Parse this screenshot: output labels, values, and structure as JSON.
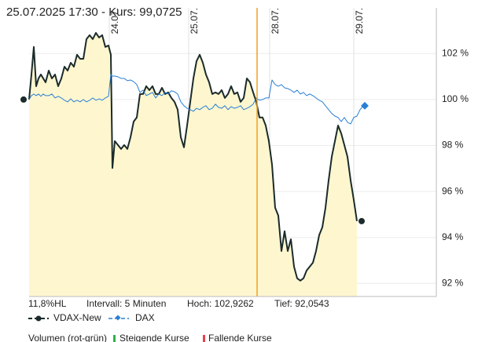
{
  "chart_data": {
    "type": "line",
    "title": "25.07.2025 17:30  -  Kurs: 99,0725",
    "x": [
      0,
      3,
      6,
      9,
      12,
      15,
      18,
      21,
      25,
      29,
      33,
      37,
      41,
      45,
      49,
      53,
      57,
      61,
      65,
      69,
      73,
      77,
      81,
      85,
      89,
      93,
      97,
      101,
      104,
      106,
      109,
      113,
      117,
      121,
      125,
      129,
      133,
      137,
      141,
      145,
      149,
      153,
      157,
      161,
      165,
      169,
      173,
      177,
      181,
      185,
      189,
      193,
      197,
      201,
      205,
      209,
      213,
      217,
      221,
      225,
      229,
      233,
      237,
      241,
      245,
      249,
      253,
      257,
      261,
      265,
      269,
      273,
      277,
      281,
      285,
      289,
      293,
      297,
      301,
      305,
      309,
      313,
      317,
      321,
      325,
      329,
      333,
      337,
      341,
      345,
      349,
      353,
      357,
      361,
      365,
      369,
      373,
      377,
      381,
      385,
      389,
      393,
      397,
      401,
      405,
      409,
      413,
      417,
      421,
      425
    ],
    "xlim": [
      0,
      518
    ],
    "xticks": [
      {
        "value": 102,
        "label": "24.07."
      },
      {
        "value": 203,
        "label": "25.07."
      },
      {
        "value": 306,
        "label": "28.07."
      },
      {
        "value": 413,
        "label": "29.07."
      }
    ],
    "ylim": [
      91.43,
      103.99
    ],
    "yticks": [
      {
        "value": 92,
        "label": "92 %"
      },
      {
        "value": 94,
        "label": "94 %"
      },
      {
        "value": 96,
        "label": "96 %"
      },
      {
        "value": 98,
        "label": "98 %"
      },
      {
        "value": 100,
        "label": "100 %"
      },
      {
        "value": 102,
        "label": "102 %"
      }
    ],
    "grid": true,
    "series": [
      {
        "name": "VDAX-New",
        "color": "#1b2b2b",
        "fill": "#fdf6cf",
        "values": [
          100.0,
          101.09,
          102.29,
          100.58,
          100.92,
          101.09,
          100.92,
          100.75,
          101.26,
          100.92,
          101.09,
          100.58,
          100.92,
          101.43,
          101.26,
          101.6,
          101.43,
          101.95,
          101.77,
          101.77,
          102.63,
          102.8,
          102.63,
          102.9,
          102.7,
          102.8,
          102.29,
          102.35,
          101.95,
          97.02,
          98.19,
          98.02,
          97.85,
          98.02,
          97.85,
          98.36,
          99.04,
          99.22,
          100.24,
          100.24,
          100.58,
          100.41,
          100.58,
          100.24,
          100.24,
          100.51,
          100.24,
          100.31,
          100.07,
          99.9,
          99.56,
          98.36,
          97.92,
          98.87,
          99.9,
          100.92,
          101.67,
          101.95,
          101.6,
          101.09,
          100.75,
          100.24,
          100.31,
          100.24,
          100.41,
          100.07,
          100.24,
          100.58,
          100.24,
          100.31,
          99.9,
          100.07,
          100.92,
          100.75,
          100.31,
          99.9,
          99.22,
          99.22,
          98.87,
          98.19,
          97.17,
          95.29,
          94.95,
          93.41,
          94.27,
          93.41,
          93.92,
          92.73,
          92.22,
          92.12,
          92.22,
          92.56,
          92.73,
          92.9,
          93.41,
          94.1,
          94.44,
          95.29,
          96.48,
          97.51,
          98.19,
          98.87,
          98.53,
          98.02,
          97.51,
          96.48,
          95.63,
          94.71,
          null,
          null
        ]
      },
      {
        "name": "DAX",
        "color": "#2a7fd4",
        "values": [
          100.0,
          100.17,
          100.24,
          100.17,
          100.24,
          100.14,
          100.24,
          100.17,
          100.17,
          100.24,
          100.07,
          100.14,
          100.07,
          99.97,
          99.9,
          100.03,
          99.9,
          99.97,
          99.9,
          100.0,
          99.9,
          99.97,
          100.07,
          99.97,
          100.03,
          99.97,
          100.07,
          100.14,
          101.09,
          101.02,
          101.02,
          100.99,
          100.92,
          100.92,
          100.82,
          100.85,
          100.78,
          100.65,
          100.31,
          100.41,
          100.17,
          100.24,
          100.31,
          100.07,
          100.24,
          100.17,
          100.31,
          100.24,
          100.38,
          100.34,
          100.24,
          99.9,
          99.73,
          99.62,
          99.56,
          99.49,
          99.62,
          99.56,
          99.66,
          99.73,
          99.56,
          99.62,
          99.8,
          99.66,
          99.62,
          99.73,
          99.56,
          99.69,
          99.62,
          99.66,
          99.73,
          99.56,
          99.62,
          99.69,
          99.8,
          100.07,
          99.97,
          100.0,
          100.07,
          100.07,
          100.85,
          100.65,
          100.58,
          100.65,
          100.51,
          100.48,
          100.41,
          100.31,
          100.41,
          100.24,
          100.31,
          100.17,
          100.24,
          100.17,
          100.07,
          99.97,
          99.9,
          99.73,
          99.56,
          99.39,
          99.28,
          99.22,
          99.04,
          99.22,
          99.01,
          98.94,
          99.22,
          99.28,
          99.56,
          99.73
        ]
      }
    ],
    "annotations": [
      "11,8%HL",
      "Intervall: 5 Minuten",
      "Hoch: 102,9262",
      "Tief: 92,0543"
    ],
    "volume_legend": [
      "Volumen (rot-grün)",
      "Steigende Kurse",
      "Fallende Kurse"
    ]
  }
}
